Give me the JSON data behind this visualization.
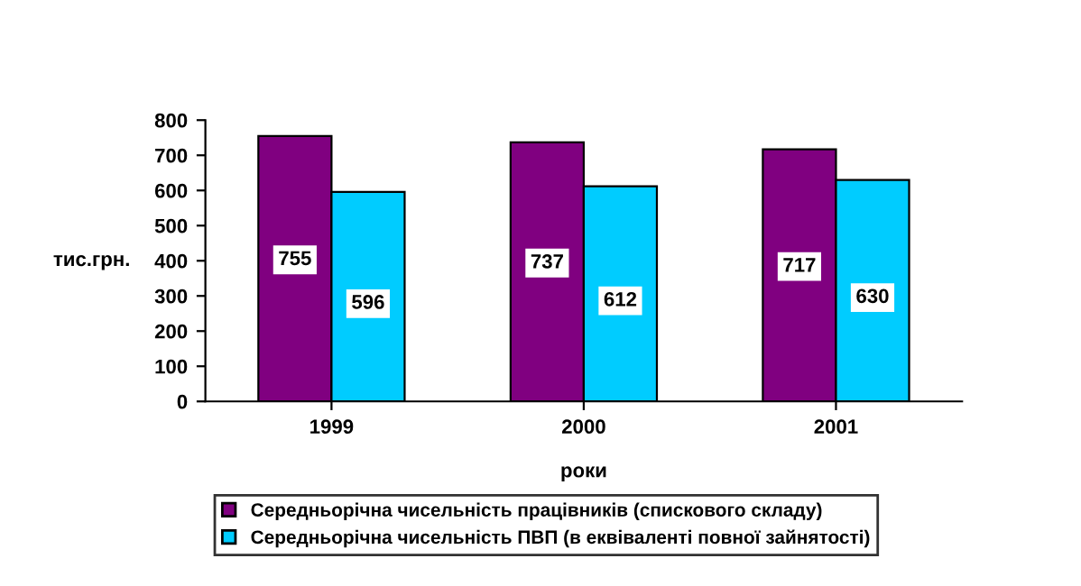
{
  "chart_data": {
    "type": "bar",
    "categories": [
      "1999",
      "2000",
      "2001"
    ],
    "series": [
      {
        "name": "Середньорічна чисельність працівників (спискового складу)",
        "color": "#800080",
        "values": [
          755,
          737,
          717
        ]
      },
      {
        "name": "Середньорічна чисельність ПВП (в еквіваленті повної зайнятості)",
        "color": "#00ccff",
        "values": [
          596,
          612,
          630
        ]
      }
    ],
    "ylabel": "тис.грн.",
    "xlabel": "роки",
    "ylim": [
      0,
      800
    ],
    "yticks": [
      0,
      100,
      200,
      300,
      400,
      500,
      600,
      700,
      800
    ],
    "data_labels": true,
    "legend": "bottom",
    "grid": false
  }
}
